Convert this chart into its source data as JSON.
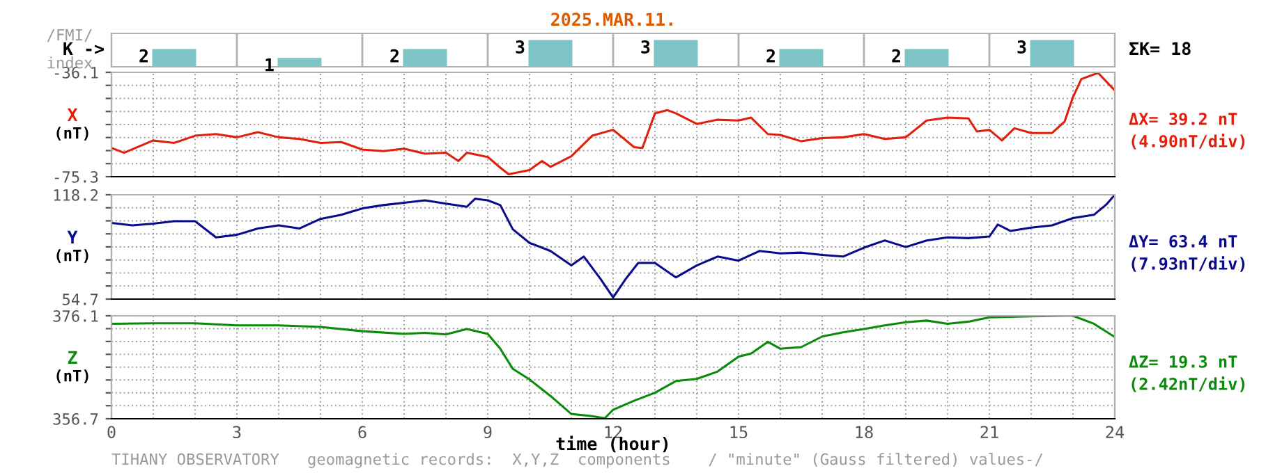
{
  "chart_data": [
    {
      "type": "bar",
      "title": "2025.MAR.11.",
      "ylabel": "K ->",
      "annotations": [
        "/FMI/",
        "index",
        "ΣK= 18"
      ],
      "categories": [
        null,
        null,
        null,
        null,
        null,
        null,
        null,
        null
      ],
      "values": [
        2,
        1,
        2,
        3,
        3,
        2,
        2,
        3
      ],
      "color": "#7fc4c4",
      "data_labels": true,
      "tick_labels": false
    },
    {
      "type": "line",
      "ylabel": "X",
      "annotations": [
        "(nT)",
        "ΔX= 39.2 nT",
        "(4.90nT/div)"
      ],
      "x": [
        0,
        0.3,
        1,
        1.5,
        2,
        2.5,
        3,
        3.5,
        4,
        4.5,
        5,
        5.5,
        6,
        6.5,
        7,
        7.5,
        8,
        8.3,
        8.5,
        9,
        9.3,
        9.5,
        10,
        10.3,
        10.5,
        11,
        11.5,
        12,
        12.5,
        12.7,
        13,
        13.3,
        13.5,
        14,
        14.5,
        15,
        15.3,
        15.7,
        16,
        16.5,
        17,
        17.5,
        18,
        18.5,
        19,
        19.5,
        20,
        20.5,
        20.7,
        21,
        21.3,
        21.6,
        22,
        22.5,
        22.8,
        23,
        23.2,
        23.6,
        24
      ],
      "series": [
        {
          "color": "#e0200c",
          "values": [
            -64.5,
            -66.3,
            -61.7,
            -62.6,
            -59.9,
            -59.3,
            -60.5,
            -58.6,
            -60.5,
            -61.1,
            -62.6,
            -62.3,
            -65.1,
            -65.7,
            -64.8,
            -66.7,
            -66.3,
            -69.4,
            -66.3,
            -67.9,
            -71.9,
            -74.4,
            -72.8,
            -69.4,
            -71.6,
            -67.6,
            -59.9,
            -57.7,
            -64.2,
            -64.5,
            -51.5,
            -50.3,
            -51.5,
            -55.5,
            -53.9,
            -54.2,
            -53.1,
            -59.3,
            -59.6,
            -62.0,
            -60.8,
            -60.5,
            -59.3,
            -61.1,
            -60.5,
            -54.2,
            -53.1,
            -53.4,
            -58.3,
            -57.7,
            -61.7,
            -57.1,
            -58.9,
            -58.9,
            -54.6,
            -45.4,
            -38.6,
            -36.3,
            -42.9
          ]
        }
      ],
      "xlim": [
        0,
        24
      ],
      "ylim": [
        -75.3,
        -36.1
      ],
      "yticks": [
        -75.3,
        {
          "value": -70.4,
          "label": null
        },
        {
          "value": -65.5,
          "label": null
        },
        {
          "value": -60.6,
          "label": null
        },
        {
          "value": -55.7,
          "label": null
        },
        {
          "value": -50.8,
          "label": null
        },
        {
          "value": -45.9,
          "label": null
        },
        {
          "value": -41.0,
          "label": null
        },
        -36.1
      ],
      "xticks": [
        {
          "value": 0,
          "label": null
        },
        {
          "value": 1,
          "label": null
        },
        {
          "value": 2,
          "label": null
        },
        {
          "value": 3,
          "label": null
        },
        {
          "value": 4,
          "label": null
        },
        {
          "value": 5,
          "label": null
        },
        {
          "value": 6,
          "label": null
        },
        {
          "value": 7,
          "label": null
        },
        {
          "value": 8,
          "label": null
        },
        {
          "value": 9,
          "label": null
        },
        {
          "value": 10,
          "label": null
        },
        {
          "value": 11,
          "label": null
        },
        {
          "value": 12,
          "label": null
        },
        {
          "value": 13,
          "label": null
        },
        {
          "value": 14,
          "label": null
        },
        {
          "value": 15,
          "label": null
        },
        {
          "value": 16,
          "label": null
        },
        {
          "value": 17,
          "label": null
        },
        {
          "value": 18,
          "label": null
        },
        {
          "value": 19,
          "label": null
        },
        {
          "value": 20,
          "label": null
        },
        {
          "value": 21,
          "label": null
        },
        {
          "value": 22,
          "label": null
        },
        {
          "value": 23,
          "label": null
        },
        {
          "value": 24,
          "label": null
        }
      ],
      "grid": true,
      "tick_labels": "y"
    },
    {
      "type": "line",
      "ylabel": "Y",
      "annotations": [
        "(nT)",
        "ΔY= 63.4 nT",
        "(7.93nT/div)"
      ],
      "x": [
        0,
        0.5,
        1,
        1.5,
        2,
        2.5,
        3,
        3.5,
        4,
        4.5,
        5,
        5.5,
        6,
        6.5,
        7,
        7.5,
        8,
        8.5,
        8.7,
        9,
        9.3,
        9.6,
        10,
        10.5,
        11,
        11.3,
        11.7,
        12,
        12.3,
        12.6,
        13,
        13.5,
        14,
        14.5,
        15,
        15.5,
        16,
        16.5,
        17,
        17.5,
        18,
        18.5,
        19,
        19.5,
        20,
        20.5,
        21,
        21.2,
        21.5,
        22,
        22.5,
        23,
        23.5,
        23.8,
        24
      ],
      "series": [
        {
          "color": "#0a0a8c",
          "values": [
            101.1,
            99.6,
            100.6,
            102.1,
            102.1,
            92.3,
            93.8,
            97.7,
            99.6,
            97.7,
            103.5,
            106.0,
            109.9,
            111.9,
            113.3,
            114.8,
            112.8,
            110.9,
            115.8,
            114.8,
            111.9,
            97.2,
            88.9,
            84.0,
            75.2,
            80.6,
            66.9,
            55.7,
            66.9,
            76.7,
            76.7,
            67.9,
            75.2,
            80.6,
            78.1,
            84.0,
            82.5,
            83.0,
            81.6,
            80.6,
            86.0,
            90.4,
            86.4,
            90.4,
            92.3,
            91.8,
            92.8,
            100.1,
            96.2,
            98.2,
            99.6,
            104.0,
            106.0,
            112.3,
            118.2
          ]
        }
      ],
      "xlim": [
        0,
        24
      ],
      "ylim": [
        54.7,
        118.2
      ],
      "yticks": [
        54.7,
        {
          "value": 62.69,
          "label": null
        },
        {
          "value": 70.62,
          "label": null
        },
        {
          "value": 78.55,
          "label": null
        },
        {
          "value": 86.48,
          "label": null
        },
        {
          "value": 94.41,
          "label": null
        },
        {
          "value": 102.34,
          "label": null
        },
        {
          "value": 110.27,
          "label": null
        },
        118.2
      ],
      "xticks": [
        {
          "value": 0,
          "label": null
        },
        {
          "value": 1,
          "label": null
        },
        {
          "value": 2,
          "label": null
        },
        {
          "value": 3,
          "label": null
        },
        {
          "value": 4,
          "label": null
        },
        {
          "value": 5,
          "label": null
        },
        {
          "value": 6,
          "label": null
        },
        {
          "value": 7,
          "label": null
        },
        {
          "value": 8,
          "label": null
        },
        {
          "value": 9,
          "label": null
        },
        {
          "value": 10,
          "label": null
        },
        {
          "value": 11,
          "label": null
        },
        {
          "value": 12,
          "label": null
        },
        {
          "value": 13,
          "label": null
        },
        {
          "value": 14,
          "label": null
        },
        {
          "value": 15,
          "label": null
        },
        {
          "value": 16,
          "label": null
        },
        {
          "value": 17,
          "label": null
        },
        {
          "value": 18,
          "label": null
        },
        {
          "value": 19,
          "label": null
        },
        {
          "value": 20,
          "label": null
        },
        {
          "value": 21,
          "label": null
        },
        {
          "value": 22,
          "label": null
        },
        {
          "value": 23,
          "label": null
        },
        {
          "value": 24,
          "label": null
        }
      ],
      "grid": true,
      "tick_labels": "y"
    },
    {
      "type": "line",
      "ylabel": "Z",
      "xlabel": "time (hour)",
      "annotations": [
        "(nT)",
        "ΔZ= 19.3 nT",
        "(2.42nT/div)",
        "TIHANY OBSERVATORY   geomagnetic records:  X,Y,Z  components    / \"minute\" (Gauss filtered) values-/"
      ],
      "x": [
        0,
        1,
        2,
        3,
        4,
        5,
        6,
        7,
        7.5,
        8,
        8.5,
        9,
        9.3,
        9.6,
        10,
        10.5,
        11,
        11.5,
        11.8,
        12,
        12.5,
        13,
        13.5,
        14,
        14.5,
        15,
        15.3,
        15.7,
        16,
        16.5,
        17,
        17.5,
        18,
        18.5,
        19,
        19.5,
        20,
        20.5,
        21,
        21.5,
        22,
        22.8,
        23,
        23.5,
        24
      ],
      "series": [
        {
          "color": "#0a8c0a",
          "values": [
            374.6,
            374.7,
            374.7,
            374.3,
            374.3,
            374.0,
            373.2,
            372.7,
            372.9,
            372.6,
            373.6,
            372.7,
            369.9,
            366.1,
            364.1,
            361.0,
            357.6,
            357.2,
            356.8,
            358.4,
            360.1,
            361.6,
            363.8,
            364.2,
            365.6,
            368.4,
            369.0,
            371.2,
            369.9,
            370.2,
            372.2,
            373.0,
            373.6,
            374.3,
            374.9,
            375.2,
            374.6,
            375.0,
            375.8,
            375.9,
            376.0,
            376.1,
            376.1,
            374.6,
            372.1
          ]
        }
      ],
      "xlim": [
        0,
        24
      ],
      "ylim": [
        356.7,
        376.1
      ],
      "yticks": [
        356.7,
        {
          "value": 359.16,
          "label": null
        },
        {
          "value": 361.58,
          "label": null
        },
        {
          "value": 364.0,
          "label": null
        },
        {
          "value": 366.42,
          "label": null
        },
        {
          "value": 368.84,
          "label": null
        },
        {
          "value": 371.26,
          "label": null
        },
        {
          "value": 373.68,
          "label": null
        },
        376.1
      ],
      "xticks": [
        0,
        {
          "value": 1,
          "label": null
        },
        {
          "value": 2,
          "label": null
        },
        3,
        {
          "value": 4,
          "label": null
        },
        {
          "value": 5,
          "label": null
        },
        6,
        {
          "value": 7,
          "label": null
        },
        {
          "value": 8,
          "label": null
        },
        9,
        {
          "value": 10,
          "label": null
        },
        {
          "value": 11,
          "label": null
        },
        12,
        {
          "value": 13,
          "label": null
        },
        {
          "value": 14,
          "label": null
        },
        15,
        {
          "value": 16,
          "label": null
        },
        {
          "value": 17,
          "label": null
        },
        18,
        {
          "value": 19,
          "label": null
        },
        {
          "value": 20,
          "label": null
        },
        21,
        {
          "value": 22,
          "label": null
        },
        {
          "value": 23,
          "label": null
        },
        24
      ],
      "grid": true
    }
  ]
}
